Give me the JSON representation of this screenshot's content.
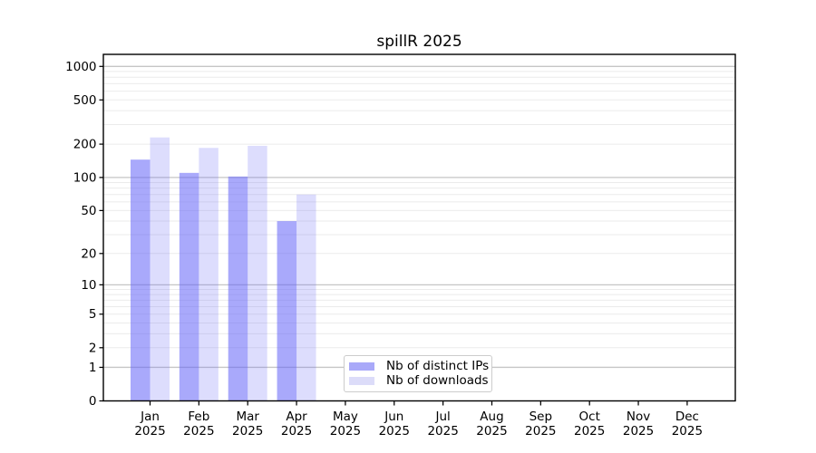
{
  "title": "spillR 2025",
  "chart_data": {
    "type": "bar",
    "title": "spillR 2025",
    "categories": [
      "Jan",
      "Feb",
      "Mar",
      "Apr",
      "May",
      "Jun",
      "Jul",
      "Aug",
      "Sep",
      "Oct",
      "Nov",
      "Dec"
    ],
    "x_year_label": "2025",
    "y_scale": "log1p",
    "y_ticks": [
      0,
      1,
      2,
      5,
      10,
      20,
      50,
      100,
      200,
      500,
      1000
    ],
    "y_major_grid": [
      1,
      10,
      100,
      1000
    ],
    "ylim": [
      0,
      1280
    ],
    "grid": true,
    "legend_position": "bottom-center",
    "series": [
      {
        "name": "Nb of distinct IPs",
        "fill": "rgba(98,98,248,0.55)",
        "legend_color": "#a9a9f9",
        "values": [
          145,
          110,
          102,
          40,
          null,
          null,
          null,
          null,
          null,
          null,
          null,
          null
        ]
      },
      {
        "name": "Nb of downloads",
        "fill": "rgba(98,98,248,0.22)",
        "legend_color": "#dcdcf9",
        "values": [
          230,
          185,
          193,
          70,
          null,
          null,
          null,
          null,
          null,
          null,
          null,
          null
        ]
      }
    ],
    "colors": {
      "major_grid": "#c6c6c6",
      "minor_grid": "#ebebeb",
      "spine": "#000000",
      "text": "#000000",
      "background": "#ffffff"
    }
  }
}
